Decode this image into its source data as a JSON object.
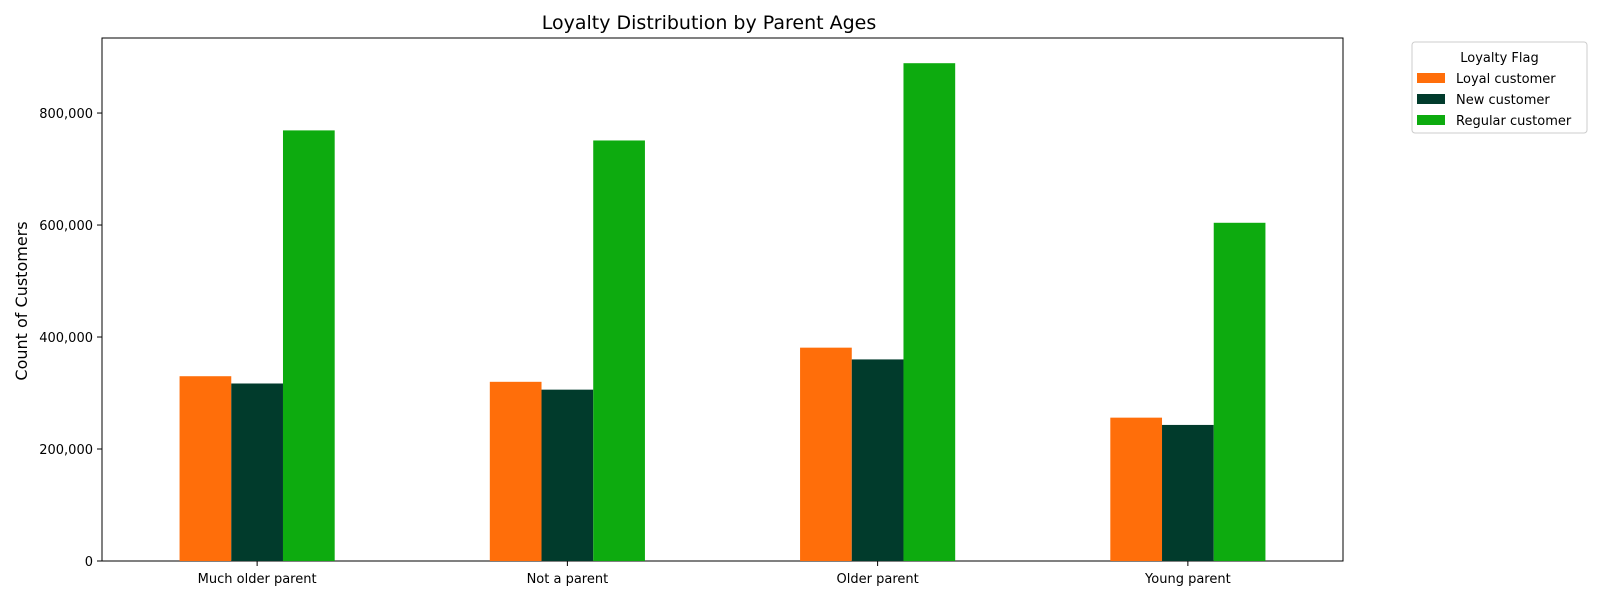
{
  "chart_data": {
    "type": "bar",
    "title": "Loyalty Distribution by Parent Ages",
    "xlabel": "",
    "ylabel": "Count of Customers",
    "categories": [
      "Much older parent",
      "Not a parent",
      "Older parent",
      "Young parent"
    ],
    "series": [
      {
        "name": "Loyal customer",
        "color": "#ff6e0a",
        "values": [
          330000,
          320000,
          381000,
          256000
        ]
      },
      {
        "name": "New customer",
        "color": "#013b2c",
        "values": [
          317000,
          306000,
          360000,
          243000
        ]
      },
      {
        "name": "Regular customer",
        "color": "#0dab0f",
        "values": [
          769000,
          751000,
          889000,
          604000
        ]
      }
    ],
    "yticks": [
      0,
      200000,
      400000,
      600000,
      800000
    ],
    "ytick_labels": [
      "0",
      "200,000",
      "400,000",
      "600,000",
      "800,000"
    ],
    "ylim": [
      0,
      934000
    ],
    "grid": false,
    "legend": {
      "title": "Loyalty Flag",
      "placement": "outside-top-right"
    }
  }
}
